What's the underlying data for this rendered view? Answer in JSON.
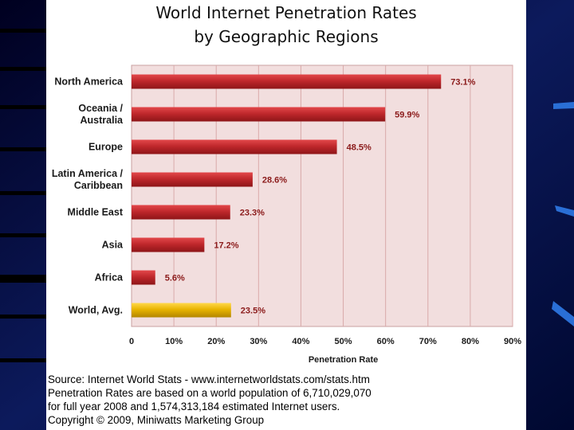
{
  "chart_data": {
    "type": "bar",
    "orientation": "horizontal",
    "title": "World Internet Penetration Rates",
    "subtitle": "by Geographic Regions",
    "xlabel": "Penetration Rate",
    "ylabel": "",
    "categories": [
      "North America",
      "Oceania / Australia",
      "Europe",
      "Latin America / Caribbean",
      "Middle East",
      "Asia",
      "Africa",
      "World, Avg."
    ],
    "category_lines": [
      [
        "North America"
      ],
      [
        "Oceania  /",
        "Australia"
      ],
      [
        "Europe"
      ],
      [
        "Latin America /",
        "Caribbean"
      ],
      [
        "Middle East"
      ],
      [
        "Asia"
      ],
      [
        "Africa"
      ],
      [
        "World, Avg."
      ]
    ],
    "values": [
      73.1,
      59.9,
      48.5,
      28.6,
      23.3,
      17.2,
      5.6,
      23.5
    ],
    "value_labels": [
      "73.1%",
      "59.9%",
      "48.5%",
      "28.6%",
      "23.3%",
      "17.2%",
      "5.6%",
      "23.5%"
    ],
    "xlim": [
      0,
      90
    ],
    "xticks": [
      0,
      10,
      20,
      30,
      40,
      50,
      60,
      70,
      80,
      90
    ],
    "xtick_labels": [
      "0",
      "10%",
      "20%",
      "30%",
      "40%",
      "50%",
      "60%",
      "70%",
      "80%",
      "90%"
    ],
    "grid": true,
    "legend": "none",
    "colors": {
      "bar": "#c0282c",
      "highlight_bar": "#e8b400",
      "plot_background": "#f2dede",
      "grid": "#d9a9a9",
      "value_label": "#8b1a1a"
    }
  },
  "source_lines": [
    "Source: Internet World Stats - www.internetworldstats.com/stats.htm",
    "Penetration Rates are based on a world population of 6,710,029,070",
    "for full year 2008 and 1,574,313,184 estimated Internet users.",
    "Copyright © 2009, Miniwatts Marketing Group"
  ]
}
